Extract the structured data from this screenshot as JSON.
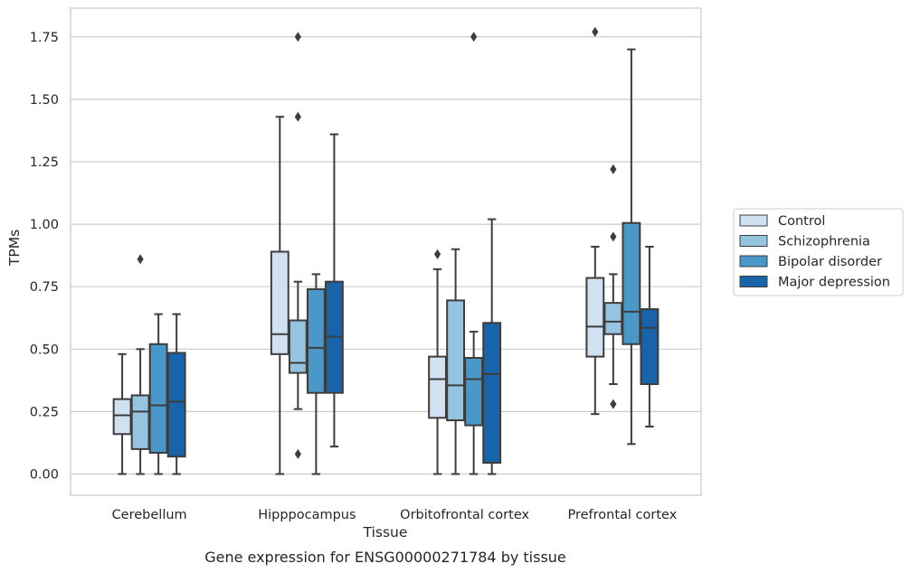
{
  "chart_data": {
    "type": "box",
    "caption": "Gene expression for ENSG00000271784 by tissue",
    "xlabel": "Tissue",
    "ylabel": "TPMs",
    "ylim": [
      -0.085,
      1.865
    ],
    "yticks": [
      0.0,
      0.25,
      0.5,
      0.75,
      1.0,
      1.25,
      1.5,
      1.75
    ],
    "ytick_labels": [
      "0.00",
      "0.25",
      "0.50",
      "0.75",
      "1.00",
      "1.25",
      "1.50",
      "1.75"
    ],
    "grid": "horizontal",
    "legend_position": "right",
    "categories": [
      "Cerebellum",
      "Hipppocampus",
      "Orbitofrontal cortex",
      "Prefrontal cortex"
    ],
    "series": [
      {
        "name": "Control",
        "color": "#d0e1f2",
        "boxes": [
          {
            "whisker_low": 0.0,
            "q1": 0.16,
            "median": 0.235,
            "q3": 0.3,
            "whisker_high": 0.48,
            "outliers": []
          },
          {
            "whisker_low": 0.0,
            "q1": 0.48,
            "median": 0.56,
            "q3": 0.89,
            "whisker_high": 1.43,
            "outliers": []
          },
          {
            "whisker_low": 0.0,
            "q1": 0.225,
            "median": 0.38,
            "q3": 0.47,
            "whisker_high": 0.82,
            "outliers": [
              0.88
            ]
          },
          {
            "whisker_low": 0.24,
            "q1": 0.47,
            "median": 0.59,
            "q3": 0.785,
            "whisker_high": 0.91,
            "outliers": [
              1.77
            ]
          }
        ]
      },
      {
        "name": "Schizophrenia",
        "color": "#94c4df",
        "boxes": [
          {
            "whisker_low": 0.0,
            "q1": 0.1,
            "median": 0.25,
            "q3": 0.315,
            "whisker_high": 0.5,
            "outliers": [
              0.86
            ]
          },
          {
            "whisker_low": 0.26,
            "q1": 0.405,
            "median": 0.445,
            "q3": 0.615,
            "whisker_high": 0.77,
            "outliers": [
              1.43,
              1.75,
              0.08
            ]
          },
          {
            "whisker_low": 0.0,
            "q1": 0.215,
            "median": 0.355,
            "q3": 0.695,
            "whisker_high": 0.9,
            "outliers": []
          },
          {
            "whisker_low": 0.36,
            "q1": 0.56,
            "median": 0.61,
            "q3": 0.685,
            "whisker_high": 0.8,
            "outliers": [
              1.22,
              0.95,
              0.28
            ]
          }
        ]
      },
      {
        "name": "Bipolar disorder",
        "color": "#4a98c9",
        "boxes": [
          {
            "whisker_low": 0.0,
            "q1": 0.085,
            "median": 0.275,
            "q3": 0.52,
            "whisker_high": 0.64,
            "outliers": []
          },
          {
            "whisker_low": 0.0,
            "q1": 0.325,
            "median": 0.505,
            "q3": 0.74,
            "whisker_high": 0.8,
            "outliers": []
          },
          {
            "whisker_low": 0.0,
            "q1": 0.195,
            "median": 0.38,
            "q3": 0.465,
            "whisker_high": 0.57,
            "outliers": [
              1.75
            ]
          },
          {
            "whisker_low": 0.12,
            "q1": 0.52,
            "median": 0.65,
            "q3": 1.005,
            "whisker_high": 1.7,
            "outliers": []
          }
        ]
      },
      {
        "name": "Major depression",
        "color": "#1764ab",
        "boxes": [
          {
            "whisker_low": 0.0,
            "q1": 0.07,
            "median": 0.29,
            "q3": 0.485,
            "whisker_high": 0.64,
            "outliers": []
          },
          {
            "whisker_low": 0.11,
            "q1": 0.325,
            "median": 0.55,
            "q3": 0.77,
            "whisker_high": 1.36,
            "outliers": []
          },
          {
            "whisker_low": 0.0,
            "q1": 0.045,
            "median": 0.4,
            "q3": 0.605,
            "whisker_high": 1.02,
            "outliers": []
          },
          {
            "whisker_low": 0.19,
            "q1": 0.36,
            "median": 0.585,
            "q3": 0.66,
            "whisker_high": 0.91,
            "outliers": []
          }
        ]
      }
    ]
  }
}
